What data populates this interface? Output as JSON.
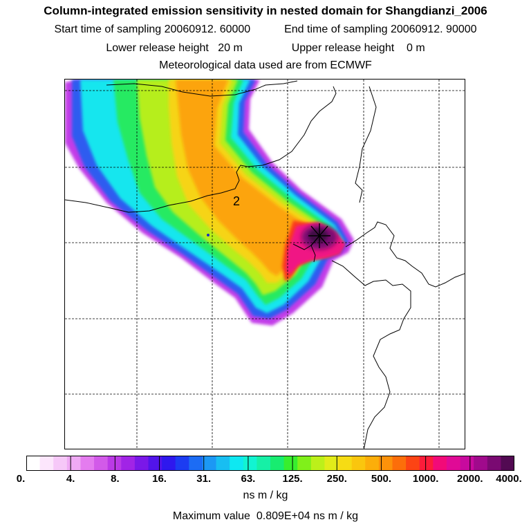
{
  "header": {
    "title": "Column-integrated emission sensitivity in nested domain for Shangdianzi_2006",
    "start_label": "Start time of sampling",
    "start_value": "20060912. 60000",
    "end_label": "End time of sampling",
    "end_value": "20060912. 90000",
    "lower_label": "Lower release height",
    "lower_value": "20 m",
    "upper_label": "Upper release height",
    "upper_value": "0 m",
    "meteo": "Meteorological data used are from ECMWF"
  },
  "map": {
    "contour_label": "2",
    "receptor_marker": "receptor-cross"
  },
  "colorbar": {
    "units": "ns m / kg",
    "ticks": [
      "0.",
      "4.",
      "8.",
      "16.",
      "31.",
      "63.",
      "125.",
      "250.",
      "500.",
      "1000.",
      "2000.",
      "4000."
    ],
    "colors": [
      "#ffffff",
      "#fce6fc",
      "#f6c8f8",
      "#efaaf4",
      "#e47cef",
      "#d25ae9",
      "#bb3ae6",
      "#a124e6",
      "#7a18e8",
      "#5214ea",
      "#2e18ee",
      "#1c3cf2",
      "#1c6cf4",
      "#1c98f4",
      "#18bef2",
      "#0ee8f2",
      "#12f4d2",
      "#16f0a6",
      "#18ec70",
      "#38ee2e",
      "#80f01a",
      "#bcf01a",
      "#e2ec1a",
      "#f6dc14",
      "#fac60e",
      "#fcae0a",
      "#fc920a",
      "#fc6e0a",
      "#fc4414",
      "#fc1c3a",
      "#f20a78",
      "#e00a96",
      "#c80a9e",
      "#a00a8c",
      "#7a0a72",
      "#520a52"
    ]
  },
  "footer": {
    "max_label": "Maximum value",
    "max_value": "0.809E+04",
    "max_units": "ns m / kg"
  }
}
